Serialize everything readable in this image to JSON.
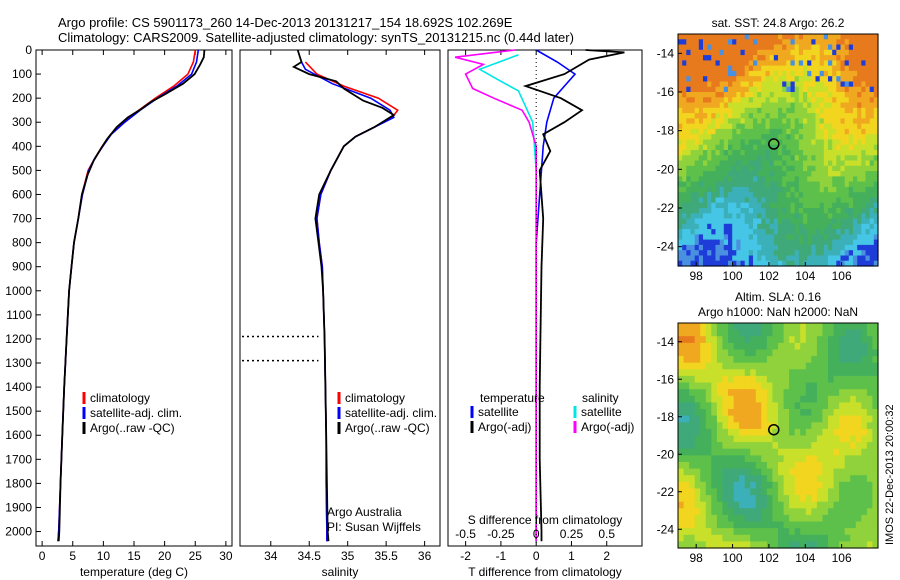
{
  "header": {
    "line1": "Argo profile: CS 5901173_260 14-Dec-2013 20131217_154 18.692S 102.269E",
    "line2": "Climatology: CARS2009. Satellite-adjusted climatology: synTS_20131215.nc (0.44d later)"
  },
  "watermark": "IMOS 22-Dec-2013 20:00:32",
  "colors": {
    "climatology": "#ff0000",
    "satellite": "#0000ff",
    "argo": "#000000",
    "satellite_s": "#00e5e5",
    "argo_s": "#ff00ff"
  },
  "chart_data": [
    {
      "type": "line",
      "title": "",
      "xlabel": "temperature (deg C)",
      "ylabel": "",
      "xlim": [
        -1,
        31
      ],
      "ylim": [
        2060,
        0
      ],
      "xticks": [
        "0",
        "5",
        "10",
        "15",
        "20",
        "25",
        "30"
      ],
      "xtick_values": [
        0,
        5,
        10,
        15,
        20,
        25,
        30
      ],
      "yticks": [
        "0",
        "100",
        "200",
        "300",
        "400",
        "500",
        "600",
        "700",
        "800",
        "900",
        "1000",
        "1100",
        "1200",
        "1300",
        "1400",
        "1500",
        "1600",
        "1700",
        "1800",
        "1900",
        "2000"
      ],
      "ytick_values": [
        0,
        100,
        200,
        300,
        400,
        500,
        600,
        700,
        800,
        900,
        1000,
        1100,
        1200,
        1300,
        1400,
        1500,
        1600,
        1700,
        1800,
        1900,
        2000
      ],
      "legend": [
        "climatology",
        "satellite-adj. clim.",
        "Argo(..raw -QC)"
      ],
      "legend_placement": "center",
      "series": [
        {
          "name": "climatology",
          "color": "#ff0000",
          "points": [
            [
              25,
              0
            ],
            [
              24.7,
              50
            ],
            [
              23.8,
              100
            ],
            [
              21.5,
              150
            ],
            [
              18.5,
              200
            ],
            [
              15.8,
              250
            ],
            [
              13.2,
              300
            ],
            [
              11.2,
              350
            ],
            [
              9.8,
              400
            ],
            [
              8.6,
              450
            ],
            [
              7.5,
              500
            ],
            [
              6.5,
              600
            ],
            [
              5.9,
              700
            ],
            [
              5.2,
              800
            ],
            [
              4.8,
              900
            ],
            [
              4.4,
              1000
            ],
            [
              4.0,
              1200
            ],
            [
              3.6,
              1400
            ],
            [
              3.3,
              1600
            ],
            [
              3.0,
              1800
            ],
            [
              2.7,
              2000
            ],
            [
              2.6,
              2040
            ]
          ]
        },
        {
          "name": "satellite-adj. clim.",
          "color": "#0000ff",
          "points": [
            [
              25.5,
              0
            ],
            [
              25.2,
              50
            ],
            [
              24.4,
              100
            ],
            [
              22.0,
              150
            ],
            [
              18.8,
              200
            ],
            [
              16.0,
              250
            ],
            [
              13.5,
              300
            ],
            [
              11.3,
              350
            ],
            [
              9.9,
              400
            ],
            [
              8.6,
              450
            ],
            [
              7.6,
              500
            ],
            [
              6.6,
              600
            ],
            [
              5.9,
              700
            ],
            [
              5.2,
              800
            ],
            [
              4.8,
              900
            ],
            [
              4.4,
              1000
            ],
            [
              4.0,
              1200
            ],
            [
              3.6,
              1400
            ],
            [
              3.3,
              1600
            ],
            [
              3.0,
              1800
            ],
            [
              2.7,
              2000
            ],
            [
              2.6,
              2040
            ]
          ]
        },
        {
          "name": "Argo(..raw -QC)",
          "color": "#000000",
          "points": [
            [
              26.5,
              0
            ],
            [
              26.4,
              30
            ],
            [
              25.8,
              60
            ],
            [
              24.9,
              100
            ],
            [
              23.0,
              140
            ],
            [
              20.0,
              185
            ],
            [
              17.8,
              215
            ],
            [
              16.2,
              245
            ],
            [
              14.0,
              280
            ],
            [
              12.2,
              320
            ],
            [
              10.6,
              370
            ],
            [
              9.6,
              410
            ],
            [
              8.4,
              460
            ],
            [
              7.4,
              520
            ],
            [
              6.5,
              600
            ],
            [
              5.9,
              700
            ],
            [
              5.2,
              800
            ],
            [
              4.8,
              900
            ],
            [
              4.4,
              1000
            ],
            [
              4.0,
              1200
            ],
            [
              3.6,
              1400
            ],
            [
              3.3,
              1600
            ],
            [
              3.0,
              1800
            ],
            [
              2.8,
              2000
            ],
            [
              2.7,
              2040
            ]
          ]
        }
      ]
    },
    {
      "type": "line",
      "title": "",
      "xlabel": "salinity",
      "ylabel": "",
      "xlim": [
        33.6,
        36.2
      ],
      "ylim": [
        2060,
        0
      ],
      "xticks": [
        "34",
        "34.5",
        "35",
        "35.5",
        "36"
      ],
      "xtick_values": [
        34,
        34.5,
        35,
        35.5,
        36
      ],
      "legend": [
        "climatology",
        "satellite-adj. clim.",
        "Argo(..raw -QC)"
      ],
      "legend_placement": "center",
      "annotations": [
        "Argo Australia",
        "PI: Susan Wijffels"
      ],
      "dotted_depths": [
        1190,
        1290
      ],
      "series": [
        {
          "name": "climatology",
          "color": "#ff0000",
          "points": [
            [
              34.45,
              50
            ],
            [
              34.6,
              100
            ],
            [
              34.95,
              150
            ],
            [
              35.4,
              200
            ],
            [
              35.65,
              250
            ],
            [
              35.58,
              280
            ],
            [
              35.35,
              320
            ],
            [
              35.1,
              360
            ],
            [
              34.95,
              400
            ],
            [
              34.78,
              500
            ],
            [
              34.65,
              600
            ],
            [
              34.6,
              700
            ],
            [
              34.63,
              800
            ],
            [
              34.67,
              900
            ],
            [
              34.68,
              1000
            ],
            [
              34.7,
              1200
            ],
            [
              34.71,
              1400
            ],
            [
              34.72,
              1600
            ],
            [
              34.72,
              1800
            ],
            [
              34.73,
              2000
            ],
            [
              34.73,
              2040
            ]
          ]
        },
        {
          "name": "satellite-adj. clim.",
          "color": "#0000ff",
          "points": [
            [
              34.4,
              50
            ],
            [
              34.45,
              80
            ],
            [
              34.8,
              140
            ],
            [
              35.3,
              200
            ],
            [
              35.55,
              250
            ],
            [
              35.6,
              280
            ],
            [
              35.35,
              320
            ],
            [
              35.1,
              360
            ],
            [
              34.95,
              400
            ],
            [
              34.78,
              500
            ],
            [
              34.65,
              600
            ],
            [
              34.6,
              700
            ],
            [
              34.63,
              800
            ],
            [
              34.67,
              900
            ],
            [
              34.68,
              1000
            ],
            [
              34.7,
              1200
            ],
            [
              34.71,
              1400
            ],
            [
              34.72,
              1600
            ],
            [
              34.72,
              1800
            ],
            [
              34.73,
              2000
            ],
            [
              34.73,
              2040
            ]
          ]
        },
        {
          "name": "Argo(..raw -QC)",
          "color": "#000000",
          "points": [
            [
              34.35,
              0
            ],
            [
              34.4,
              50
            ],
            [
              34.3,
              70
            ],
            [
              34.5,
              100
            ],
            [
              34.85,
              130
            ],
            [
              34.95,
              160
            ],
            [
              35.2,
              210
            ],
            [
              35.45,
              240
            ],
            [
              35.6,
              270
            ],
            [
              35.35,
              320
            ],
            [
              35.1,
              360
            ],
            [
              34.95,
              400
            ],
            [
              34.78,
              500
            ],
            [
              34.63,
              600
            ],
            [
              34.58,
              700
            ],
            [
              34.62,
              800
            ],
            [
              34.66,
              900
            ],
            [
              34.68,
              1000
            ],
            [
              34.7,
              1200
            ],
            [
              34.71,
              1400
            ],
            [
              34.72,
              1600
            ],
            [
              34.73,
              1800
            ],
            [
              34.74,
              2000
            ],
            [
              34.75,
              2040
            ]
          ]
        }
      ]
    },
    {
      "type": "line",
      "title": "",
      "xlabel_top": "S difference from climatology",
      "xlabel": "T difference from climatology",
      "xlim": [
        -2.5,
        3.0
      ],
      "ylim": [
        2060,
        0
      ],
      "xticks": [
        "-2",
        "-1",
        "0",
        "1",
        "2"
      ],
      "xtick_values": [
        -2,
        -1,
        0,
        1,
        2
      ],
      "xticks_s": [
        "-0.5",
        "-0.25",
        "0",
        "0.25",
        "0.5"
      ],
      "xtick_s_values": [
        -0.5,
        -0.25,
        0,
        0.25,
        0.5
      ],
      "legend": [
        "temperature",
        "satellite",
        "Argo(-adj)",
        "salinity",
        "satellite",
        "Argo(-adj)"
      ],
      "legend_placement": "center",
      "series": [
        {
          "name": "satellite",
          "color": "#0000ff",
          "points": [
            [
              0,
              0
            ],
            [
              0.6,
              50
            ],
            [
              1.1,
              100
            ],
            [
              0.8,
              150
            ],
            [
              0.5,
              200
            ],
            [
              0.3,
              300
            ],
            [
              0.2,
              400
            ],
            [
              0.1,
              600
            ],
            [
              0,
              800
            ],
            [
              0,
              1200
            ],
            [
              0,
              1600
            ],
            [
              0,
              2040
            ]
          ]
        },
        {
          "name": "Argo(-adj)",
          "color": "#000000",
          "points": [
            [
              1.4,
              0
            ],
            [
              2.5,
              10
            ],
            [
              1.5,
              40
            ],
            [
              0.8,
              100
            ],
            [
              -0.3,
              150
            ],
            [
              0.7,
              200
            ],
            [
              1.3,
              250
            ],
            [
              0.8,
              300
            ],
            [
              0.2,
              350
            ],
            [
              0.4,
              420
            ],
            [
              0.1,
              500
            ],
            [
              0.2,
              700
            ],
            [
              0.15,
              900
            ],
            [
              0.12,
              1200
            ],
            [
              0.1,
              1400
            ],
            [
              0.1,
              1700
            ],
            [
              0.15,
              2000
            ],
            [
              0.15,
              2040
            ]
          ]
        },
        {
          "name": "satellite",
          "color": "#00e5e5",
          "points": [
            [
              -0.5,
              20
            ],
            [
              -1.6,
              80
            ],
            [
              -1.0,
              130
            ],
            [
              -0.5,
              170
            ],
            [
              -0.1,
              300
            ],
            [
              0,
              500
            ],
            [
              0,
              700
            ],
            [
              0,
              1000
            ],
            [
              0,
              1400
            ],
            [
              0,
              2040
            ]
          ]
        },
        {
          "name": "Argo(-adj)",
          "color": "#ff00ff",
          "points": [
            [
              -0.6,
              0
            ],
            [
              -2.3,
              30
            ],
            [
              -1.5,
              60
            ],
            [
              -2.0,
              100
            ],
            [
              -1.8,
              160
            ],
            [
              -1.2,
              200
            ],
            [
              -0.4,
              250
            ],
            [
              -0.2,
              300
            ],
            [
              0,
              400
            ],
            [
              0,
              600
            ],
            [
              0,
              900
            ],
            [
              0,
              1400
            ],
            [
              0,
              2040
            ]
          ]
        }
      ]
    },
    {
      "type": "heatmap",
      "title": "sat. SST: 24.8 Argo: 26.2",
      "xlim": [
        97,
        108
      ],
      "ylim": [
        -25,
        -13
      ],
      "xticks": [
        "98",
        "100",
        "102",
        "104",
        "106"
      ],
      "xtick_values": [
        98,
        100,
        102,
        104,
        106
      ],
      "yticks": [
        "-14",
        "-16",
        "-18",
        "-20",
        "-22",
        "-24"
      ],
      "ytick_values": [
        -14,
        -16,
        -18,
        -20,
        -22,
        -24
      ],
      "marker": [
        102.269,
        -18.692
      ]
    },
    {
      "type": "heatmap",
      "title": "Altim. SLA: 0.16",
      "subtitle": "Argo h1000: NaN h2000: NaN",
      "xlim": [
        97,
        108
      ],
      "ylim": [
        -25,
        -13
      ],
      "xticks": [
        "98",
        "100",
        "102",
        "104",
        "106"
      ],
      "xtick_values": [
        98,
        100,
        102,
        104,
        106
      ],
      "yticks": [
        "-14",
        "-16",
        "-18",
        "-20",
        "-22",
        "-24"
      ],
      "ytick_values": [
        -14,
        -16,
        -18,
        -20,
        -22,
        -24
      ],
      "marker": [
        102.269,
        -18.692
      ]
    }
  ]
}
